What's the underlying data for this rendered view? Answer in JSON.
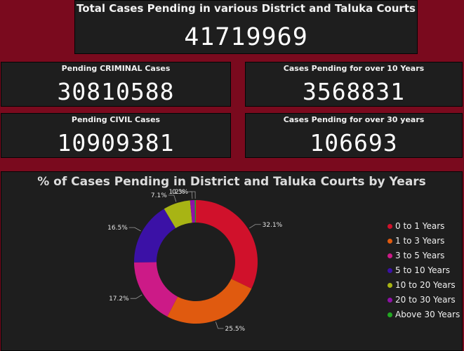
{
  "total": {
    "title": "Total Cases Pending in various District and Taluka Courts",
    "value": "41719969"
  },
  "cards": {
    "criminal": {
      "title": "Pending CRIMINAL Cases",
      "value": "30810588"
    },
    "over10": {
      "title": "Cases Pending for over 10 Years",
      "value": "3568831"
    },
    "civil": {
      "title": "Pending CIVIL Cases",
      "value": "10909381"
    },
    "over30": {
      "title": "Cases Pending for over 30 years",
      "value": "106693"
    }
  },
  "colors": {
    "background": "#7a0a1e",
    "card": "#1e1e1e"
  },
  "chart_data": {
    "type": "pie",
    "title": "% of Cases Pending in District and Taluka Courts by Years",
    "legend_position": "right",
    "categories": [
      "0 to 1 Years",
      "1 to 3 Years",
      "3 to 5 Years",
      "5 to 10 Years",
      "10 to 20 Years",
      "20 to 30 Years",
      "Above 30 Years"
    ],
    "values": [
      32.1,
      25.5,
      17.2,
      16.5,
      7.1,
      1.2,
      0.3
    ],
    "labels": [
      "32.1%",
      "25.5%",
      "17.2%",
      "16.5%",
      "7.1%",
      "1.2%",
      "0.3%"
    ],
    "colors": [
      "#d0112b",
      "#e05a0f",
      "#cc1a87",
      "#3b11a6",
      "#a8b414",
      "#8e11a6",
      "#22a822"
    ]
  }
}
